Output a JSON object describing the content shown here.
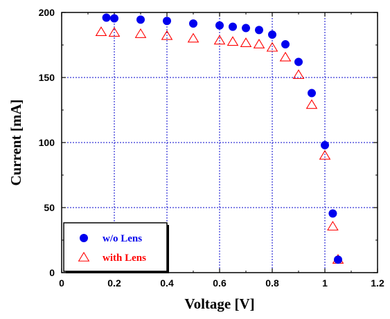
{
  "chart_data": {
    "type": "scatter",
    "title": "",
    "xlabel": "Voltage [V]",
    "ylabel": "Current [mA]",
    "xlim": [
      0,
      1.2
    ],
    "ylim": [
      0,
      200
    ],
    "x_ticks": [
      "0",
      "0.2",
      "0.4",
      "0.6",
      "0.8",
      "1",
      "1.2"
    ],
    "y_ticks": [
      "0",
      "50",
      "100",
      "150",
      "200"
    ],
    "grid": true,
    "legend_position": "bottom-left",
    "series": [
      {
        "name": "w/o Lens",
        "marker": "filled-circle",
        "color": "#0000ee",
        "points": [
          [
            0.17,
            196
          ],
          [
            0.2,
            195.5
          ],
          [
            0.3,
            194.5
          ],
          [
            0.4,
            193.5
          ],
          [
            0.5,
            191.5
          ],
          [
            0.6,
            190
          ],
          [
            0.65,
            189
          ],
          [
            0.7,
            188
          ],
          [
            0.75,
            186.5
          ],
          [
            0.8,
            183
          ],
          [
            0.85,
            175.5
          ],
          [
            0.9,
            162
          ],
          [
            0.95,
            138
          ],
          [
            1.0,
            98
          ],
          [
            1.03,
            45.5
          ],
          [
            1.05,
            10
          ]
        ]
      },
      {
        "name": "with Lens",
        "marker": "open-triangle",
        "color": "#ff0000",
        "points": [
          [
            0.15,
            185
          ],
          [
            0.2,
            184.5
          ],
          [
            0.3,
            183.5
          ],
          [
            0.4,
            182
          ],
          [
            0.5,
            180
          ],
          [
            0.6,
            178.5
          ],
          [
            0.65,
            177.5
          ],
          [
            0.7,
            176.5
          ],
          [
            0.75,
            175.5
          ],
          [
            0.8,
            173
          ],
          [
            0.85,
            165.5
          ],
          [
            0.9,
            152
          ],
          [
            0.95,
            129
          ],
          [
            1.0,
            90
          ],
          [
            1.03,
            35.5
          ],
          [
            1.05,
            10
          ]
        ]
      }
    ]
  }
}
